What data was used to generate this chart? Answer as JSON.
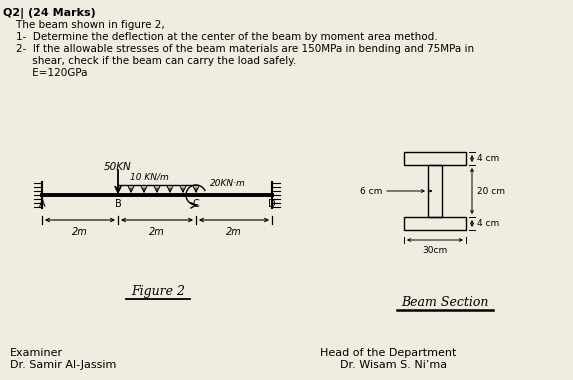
{
  "bg_color": "#f0ece0",
  "title_line": "Q2| (24 Marks)",
  "text_lines": [
    "    The beam shown in figure 2,",
    "    1-  Determine the deflection at the center of the beam by moment area method.",
    "    2-  If the allowable stresses of the beam materials are 150MPa in bending and 75MPa in",
    "         shear, check if the beam can carry the load safely.",
    "         E=120GPa"
  ],
  "figure_label": "Figure 2",
  "beam_section_label": "Beam Section",
  "examiner_line1": "Examiner",
  "examiner_line2": "Dr. Samir Al-Jassim",
  "head_line1": "Head of the Department",
  "head_line2": "Dr. Wisam S. Ni’ma",
  "load_50kn": "50KN",
  "load_dist": "10 KN/m",
  "moment": "20KN·m",
  "labels_ABCD": [
    "A",
    "B",
    "C",
    "D"
  ],
  "dims_beam": [
    "2m",
    "2m",
    "2m"
  ],
  "dim_4cm_top": "4 cm",
  "dim_20cm": "20 cm",
  "dim_4cm_bot": "4 cm",
  "dim_30cm": "30cm",
  "dim_6cm": "6 cm"
}
